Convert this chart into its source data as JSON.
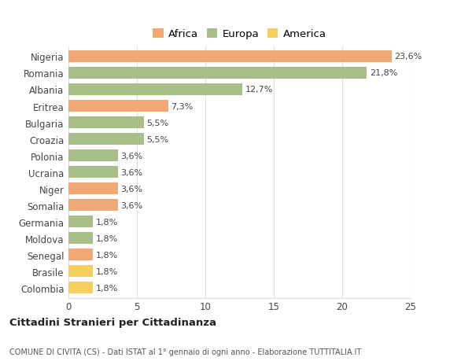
{
  "countries": [
    "Nigeria",
    "Romania",
    "Albania",
    "Eritrea",
    "Bulgaria",
    "Croazia",
    "Polonia",
    "Ucraina",
    "Niger",
    "Somalia",
    "Germania",
    "Moldova",
    "Senegal",
    "Brasile",
    "Colombia"
  ],
  "values": [
    23.6,
    21.8,
    12.7,
    7.3,
    5.5,
    5.5,
    3.6,
    3.6,
    3.6,
    3.6,
    1.8,
    1.8,
    1.8,
    1.8,
    1.8
  ],
  "continents": [
    "Africa",
    "Europa",
    "Europa",
    "Africa",
    "Europa",
    "Europa",
    "Europa",
    "Europa",
    "Africa",
    "Africa",
    "Europa",
    "Europa",
    "Africa",
    "America",
    "America"
  ],
  "labels": [
    "23,6%",
    "21,8%",
    "12,7%",
    "7,3%",
    "5,5%",
    "5,5%",
    "3,6%",
    "3,6%",
    "3,6%",
    "3,6%",
    "1,8%",
    "1,8%",
    "1,8%",
    "1,8%",
    "1,8%"
  ],
  "colors": {
    "Africa": "#f0a875",
    "Europa": "#a8bf8a",
    "America": "#f5d060"
  },
  "legend_labels": [
    "Africa",
    "Europa",
    "America"
  ],
  "title": "Cittadini Stranieri per Cittadinanza",
  "subtitle": "COMUNE DI CIVITA (CS) - Dati ISTAT al 1° gennaio di ogni anno - Elaborazione TUTTITALIA.IT",
  "xlim": [
    0,
    25
  ],
  "xticks": [
    0,
    5,
    10,
    15,
    20,
    25
  ],
  "background_color": "#ffffff",
  "grid_color": "#dddddd",
  "bar_height": 0.72,
  "label_fontsize": 8.0,
  "tick_fontsize": 8.5,
  "legend_fontsize": 9.5
}
